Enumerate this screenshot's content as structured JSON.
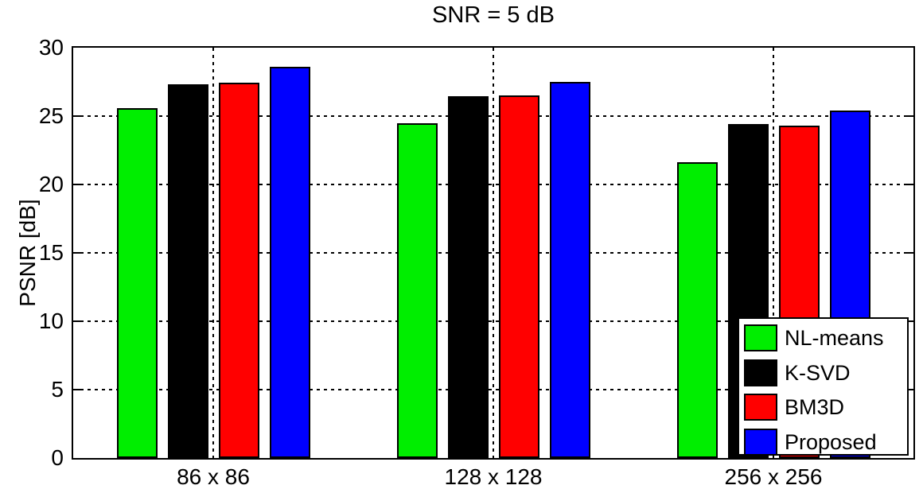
{
  "chart_data": {
    "type": "bar",
    "title": "SNR = 5 dB",
    "xlabel": "",
    "ylabel": "PSNR [dB]",
    "categories": [
      "86 x 86",
      "128 x 128",
      "256 x 256"
    ],
    "series": [
      {
        "name": "NL-means",
        "color": "#00ee00",
        "values": [
          25.6,
          24.5,
          21.6
        ]
      },
      {
        "name": "K-SVD",
        "color": "#000000",
        "values": [
          27.3,
          26.45,
          24.4
        ]
      },
      {
        "name": "BM3D",
        "color": "#ff0000",
        "values": [
          27.45,
          26.5,
          24.3
        ]
      },
      {
        "name": "Proposed",
        "color": "#0000ff",
        "values": [
          28.6,
          27.5,
          25.4
        ]
      }
    ],
    "ylim": [
      0,
      30
    ],
    "yticks": [
      0,
      5,
      10,
      15,
      20,
      25,
      30
    ],
    "grid": true,
    "grid_style": "dotted",
    "legend_position": "bottom-right",
    "axis_color": "#000000",
    "background_color": "#ffffff"
  }
}
